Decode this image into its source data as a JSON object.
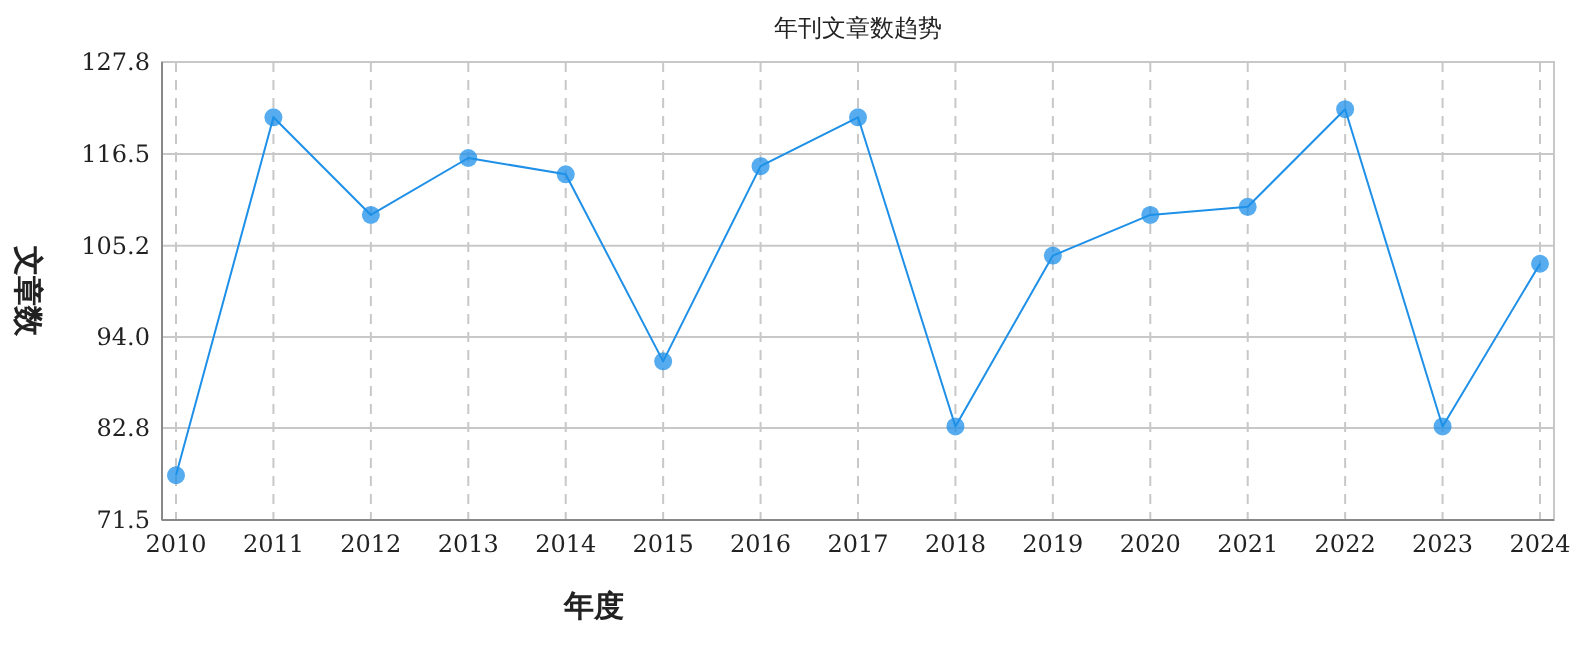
{
  "chart_data": {
    "type": "line",
    "title": "年刊文章数趋势",
    "xlabel": "年度",
    "ylabel": "文章数",
    "categories": [
      "2010",
      "2011",
      "2012",
      "2013",
      "2014",
      "2015",
      "2016",
      "2017",
      "2018",
      "2019",
      "2020",
      "2021",
      "2022",
      "2023",
      "2024"
    ],
    "series": [
      {
        "color": "#1e90e8",
        "values": [
          77,
          121,
          109,
          116,
          114,
          91,
          115,
          121,
          83,
          104,
          109,
          110,
          122,
          83,
          103
        ]
      }
    ],
    "ylim": [
      71.5,
      127.8
    ],
    "yticks": [
      71.5,
      82.8,
      {
        "value": 94,
        "label": "94.0"
      },
      105.2,
      116.5,
      127.8
    ],
    "grid": true,
    "marker": "circle",
    "line_style": "solid"
  }
}
